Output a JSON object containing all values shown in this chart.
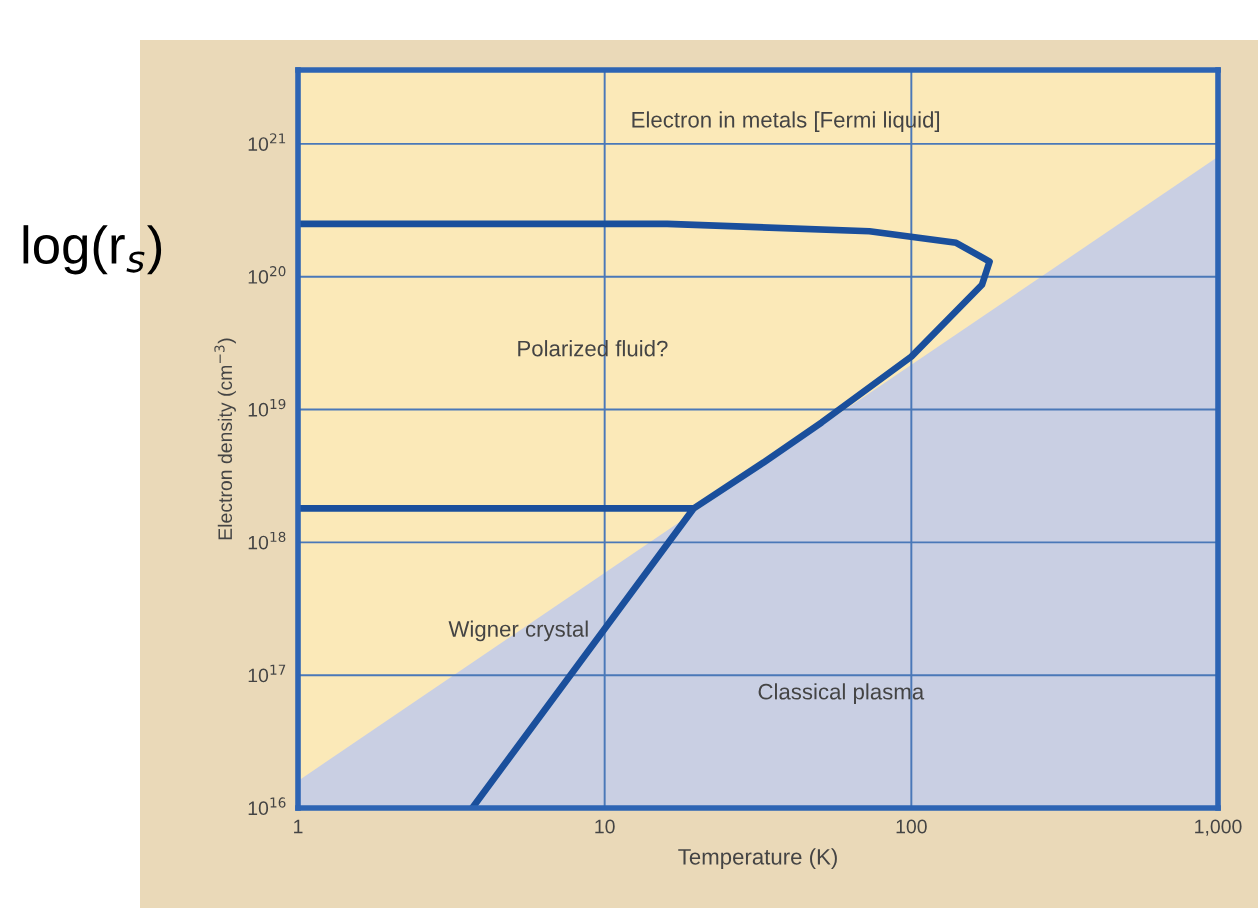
{
  "chart_data": {
    "type": "line",
    "xlabel": "Temperature (K)",
    "ylabel": "Electron density (cm$^{−3}$)",
    "log": "xy",
    "xlim": [
      1,
      1000
    ],
    "ylim": [
      1e+16,
      3.6e+21
    ],
    "xticks": [
      1,
      10,
      100,
      {
        "value": 1000,
        "label": "1,000"
      }
    ],
    "yticks": [
      {
        "value": 1e+16,
        "label": "10$^{16}$"
      },
      {
        "value": 1e+17,
        "label": "10$^{17}$"
      },
      {
        "value": 1e+18,
        "label": "10$^{18}$"
      },
      {
        "value": 1e+19,
        "label": "10$^{19}$"
      },
      {
        "value": 1e+20,
        "label": "10$^{20}$"
      },
      {
        "value": 1e+21,
        "label": "10$^{21}$"
      }
    ],
    "grid": true,
    "legend": false,
    "series": [
      {
        "type": "area",
        "color": "#c9cfe3",
        "x": [
          1,
          1000
        ],
        "values": [
          1.6e+16,
          8e+20
        ]
      },
      {
        "color": "#1a4f9c",
        "x": [
          1,
          16,
          73,
          140,
          180,
          170,
          100,
          51,
          33,
          19.5,
          3.7,
          null,
          1,
          19.5
        ],
        "values": [
          2.5e+20,
          2.5e+20,
          2.2e+20,
          1.8e+20,
          1.3e+20,
          8.7e+19,
          2.5e+19,
          8e+18,
          4e+18,
          1.8e+18,
          1e+16,
          null,
          1.8e+18,
          1.8e+18
        ]
      }
    ],
    "annotations": [
      "Electron in metals [Fermi liquid]",
      "Polarized fluid?",
      "Wigner crystal",
      "Classical plasma",
      "log(r$_{s}$)"
    ]
  }
}
